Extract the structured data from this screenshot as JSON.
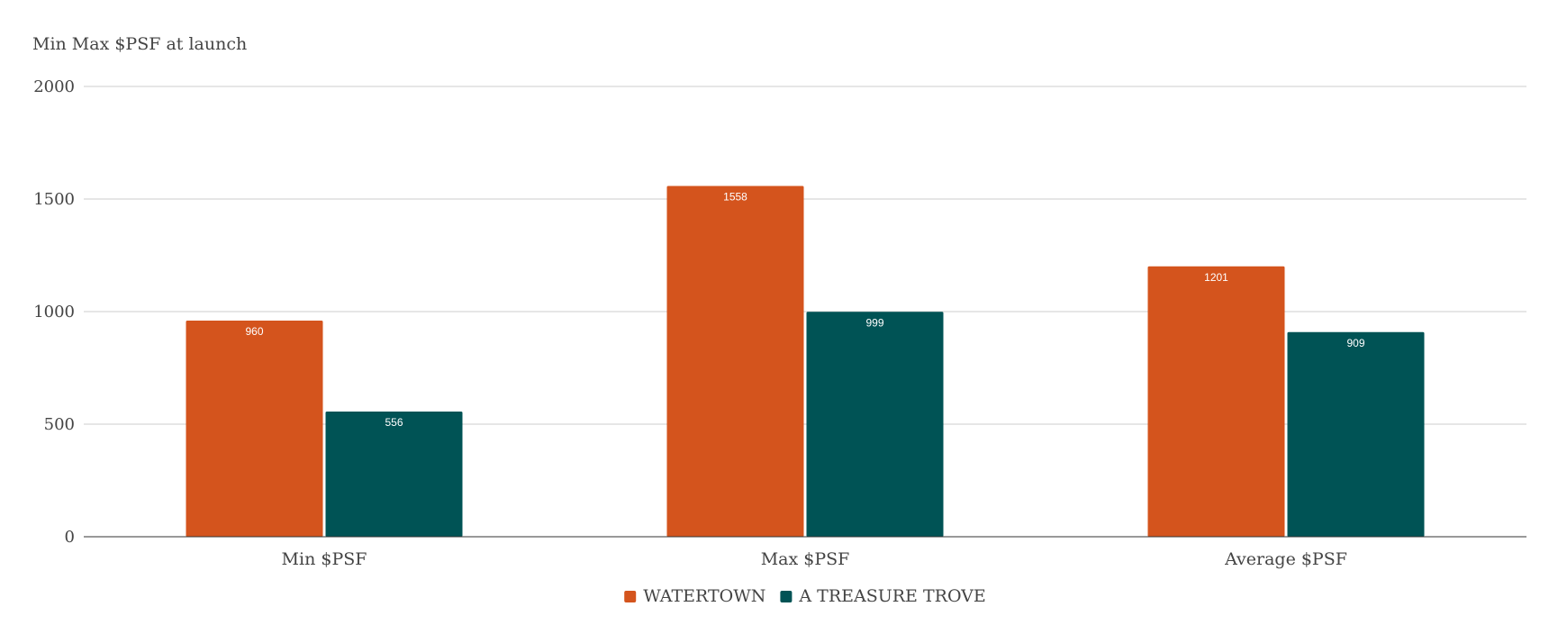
{
  "chart_data": {
    "type": "bar",
    "title": "Min Max $PSF at launch",
    "categories": [
      "Min $PSF",
      "Max $PSF",
      "Average $PSF"
    ],
    "series": [
      {
        "name": "WATERTOWN",
        "values": [
          960,
          1558,
          1201
        ],
        "color": "#d4541d"
      },
      {
        "name": "A TREASURE TROVE",
        "values": [
          556,
          999,
          909
        ],
        "color": "#005355"
      }
    ],
    "ylim": [
      0,
      2000
    ],
    "yticks": [
      "0",
      "500",
      "1000",
      "1500",
      "2000"
    ],
    "grid": true,
    "legend_position": "bottom"
  }
}
